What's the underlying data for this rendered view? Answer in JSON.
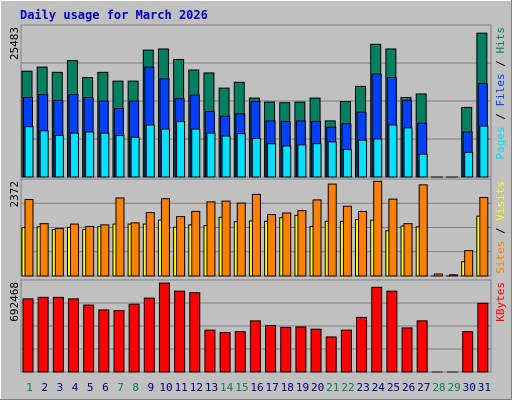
{
  "title": "Daily usage for March 2026",
  "colors": {
    "background": "#c0c0c0",
    "border_light": "#ffffff",
    "border_dark": "#808080",
    "title": "#0000c0",
    "hits": "#008060",
    "files": "#0040ff",
    "pages": "#00e0ff",
    "visits": "#ffff00",
    "sites": "#ff8000",
    "kbytes": "#ff0000",
    "outline": "#000000",
    "gridline": "#808080",
    "label_weekday": "#000080",
    "label_weekend": "#00805c",
    "label_divider": "#000000"
  },
  "chart_data": [
    {
      "type": "bar",
      "panel": "hits-files-pages",
      "categories": [
        "1",
        "2",
        "3",
        "4",
        "5",
        "6",
        "7",
        "8",
        "9",
        "10",
        "11",
        "12",
        "13",
        "14",
        "15",
        "16",
        "17",
        "18",
        "19",
        "20",
        "21",
        "22",
        "23",
        "24",
        "25",
        "26",
        "27",
        "28",
        "29",
        "30",
        "31"
      ],
      "max_label": "25483",
      "ylim": [
        0,
        25483
      ],
      "series": [
        {
          "name": "Hits",
          "values": [
            18100,
            18800,
            17900,
            19900,
            17000,
            17900,
            16400,
            16400,
            21700,
            21900,
            20100,
            18300,
            17800,
            15200,
            16200,
            13500,
            12800,
            12700,
            12800,
            13500,
            9600,
            12900,
            15500,
            22700,
            21900,
            13600,
            14200,
            0,
            0,
            11900,
            24600
          ]
        },
        {
          "name": "Files",
          "values": [
            13600,
            14100,
            13100,
            14100,
            13600,
            13000,
            11700,
            13000,
            18800,
            16800,
            13400,
            14000,
            11200,
            10400,
            10800,
            12900,
            9600,
            9500,
            9600,
            9500,
            8500,
            9100,
            11100,
            17600,
            17000,
            13100,
            9200,
            0,
            0,
            7700,
            16000
          ]
        },
        {
          "name": "Pages",
          "values": [
            8600,
            7900,
            7100,
            7500,
            7700,
            7500,
            7100,
            6800,
            8900,
            8200,
            9500,
            8200,
            7500,
            7000,
            7400,
            6600,
            5700,
            5300,
            5500,
            5700,
            6000,
            4700,
            6300,
            6500,
            8900,
            8400,
            3900,
            0,
            0,
            4200,
            8700
          ]
        }
      ],
      "legend": [
        {
          "name": "Pages",
          "divider": "/"
        },
        {
          "name": "Files",
          "divider": "/"
        },
        {
          "name": "Hits"
        }
      ]
    },
    {
      "type": "bar",
      "panel": "visits-sites",
      "categories": [
        "1",
        "2",
        "3",
        "4",
        "5",
        "6",
        "7",
        "8",
        "9",
        "10",
        "11",
        "12",
        "13",
        "14",
        "15",
        "16",
        "17",
        "18",
        "19",
        "20",
        "21",
        "22",
        "23",
        "24",
        "25",
        "26",
        "27",
        "28",
        "29",
        "30",
        "31"
      ],
      "max_label": "2372",
      "ylim": [
        0,
        2372
      ],
      "series": [
        {
          "name": "Visits",
          "values": [
            1220,
            1240,
            1170,
            1230,
            1170,
            1250,
            1310,
            1310,
            1310,
            1410,
            1230,
            1290,
            1270,
            1480,
            1370,
            1390,
            1380,
            1470,
            1530,
            1250,
            1380,
            1380,
            1420,
            1410,
            1140,
            1260,
            1240,
            0,
            0,
            360,
            1510
          ]
        },
        {
          "name": "Sites",
          "values": [
            1930,
            1320,
            1200,
            1310,
            1250,
            1290,
            1970,
            1340,
            1600,
            1950,
            1500,
            1630,
            1870,
            1890,
            1840,
            2060,
            1550,
            1590,
            1650,
            1920,
            2320,
            1760,
            1630,
            2390,
            1940,
            1320,
            2300,
            50,
            30,
            640,
            1980
          ]
        }
      ],
      "legend": [
        {
          "name": "Sites",
          "divider": "/"
        },
        {
          "name": "Visits"
        }
      ]
    },
    {
      "type": "bar",
      "panel": "kbytes",
      "categories": [
        "1",
        "2",
        "3",
        "4",
        "5",
        "6",
        "7",
        "8",
        "9",
        "10",
        "11",
        "12",
        "13",
        "14",
        "15",
        "16",
        "17",
        "18",
        "19",
        "20",
        "21",
        "22",
        "23",
        "24",
        "25",
        "26",
        "27",
        "28",
        "29",
        "30",
        "31"
      ],
      "max_label": "692468",
      "ylim": [
        0,
        692468
      ],
      "series": [
        {
          "name": "KBytes",
          "values": [
            569000,
            581000,
            581000,
            569000,
            521000,
            483000,
            477000,
            527000,
            575000,
            692000,
            629000,
            617000,
            326000,
            307000,
            314000,
            398000,
            362000,
            347000,
            350000,
            333000,
            273000,
            326000,
            425000,
            659000,
            629000,
            343000,
            398000,
            0,
            0,
            314000,
            535000
          ]
        }
      ],
      "legend": [
        {
          "name": "KBytes"
        }
      ]
    }
  ],
  "x_axis": {
    "labels": [
      "1",
      "2",
      "3",
      "4",
      "5",
      "6",
      "7",
      "8",
      "9",
      "10",
      "11",
      "12",
      "13",
      "14",
      "15",
      "16",
      "17",
      "18",
      "19",
      "20",
      "21",
      "22",
      "23",
      "24",
      "25",
      "26",
      "27",
      "28",
      "29",
      "30",
      "31"
    ],
    "weekend": [
      1,
      7,
      8,
      14,
      15,
      21,
      22,
      28,
      29
    ]
  }
}
